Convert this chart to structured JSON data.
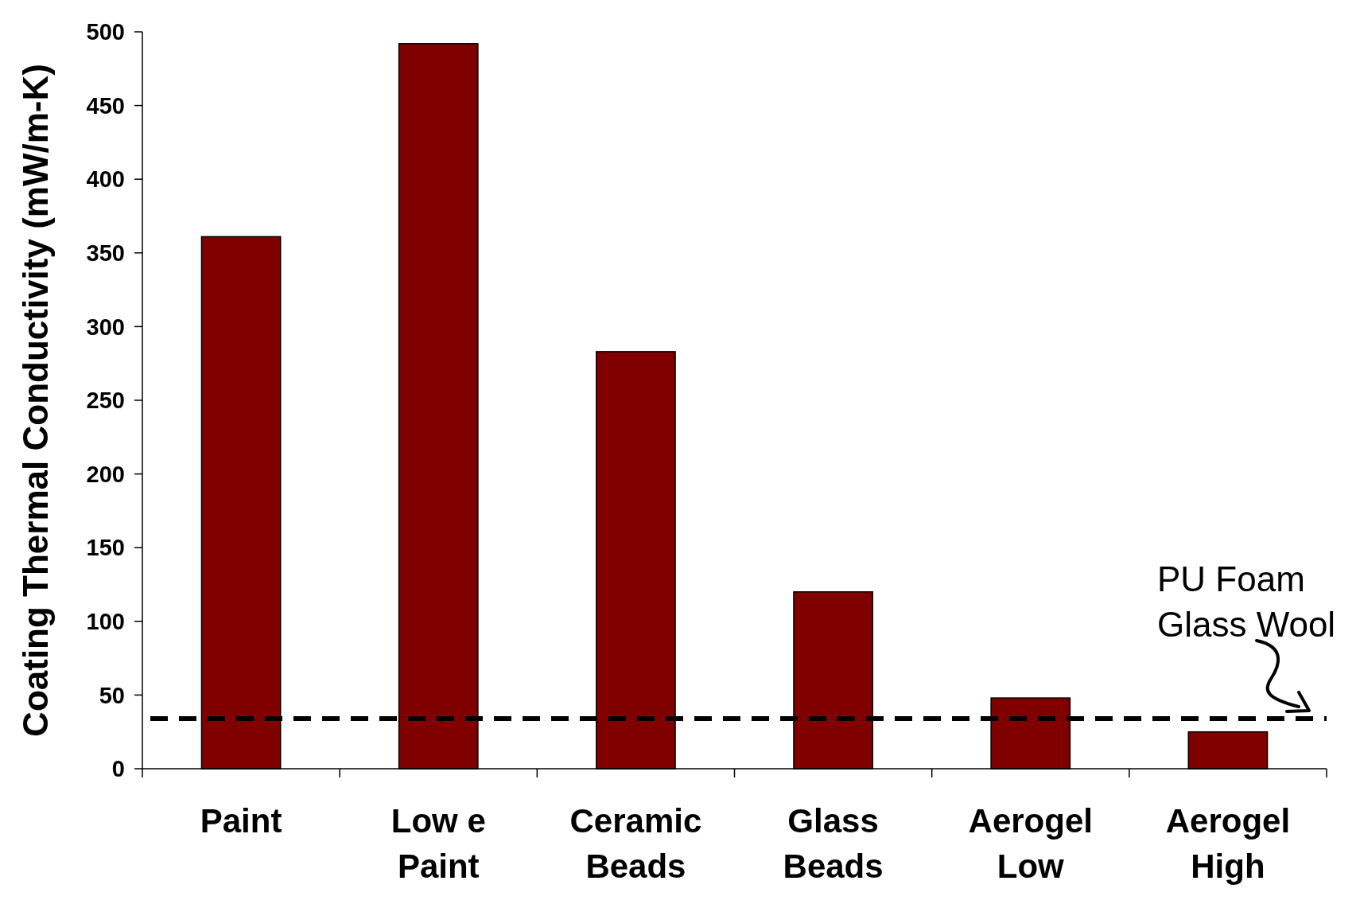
{
  "chart_data": {
    "type": "bar",
    "ylabel": "Coating Thermal Conductivity (mW/m-K)",
    "categories": [
      "Paint",
      "Low e Paint",
      "Ceramic Beads",
      "Glass Beads",
      "Aerogel Low",
      "Aerogel High"
    ],
    "values": [
      361,
      492,
      283,
      120,
      48,
      25
    ],
    "color": "#800000",
    "ylim": [
      0,
      500
    ],
    "yticks": [
      0,
      50,
      100,
      150,
      200,
      250,
      300,
      350,
      400,
      450,
      500
    ],
    "grid": false,
    "ref_lines": [
      {
        "axis": "y",
        "value": 34,
        "label": "PU Foam Glass Wool",
        "color": "#000000",
        "line_style": "dashed"
      }
    ]
  }
}
